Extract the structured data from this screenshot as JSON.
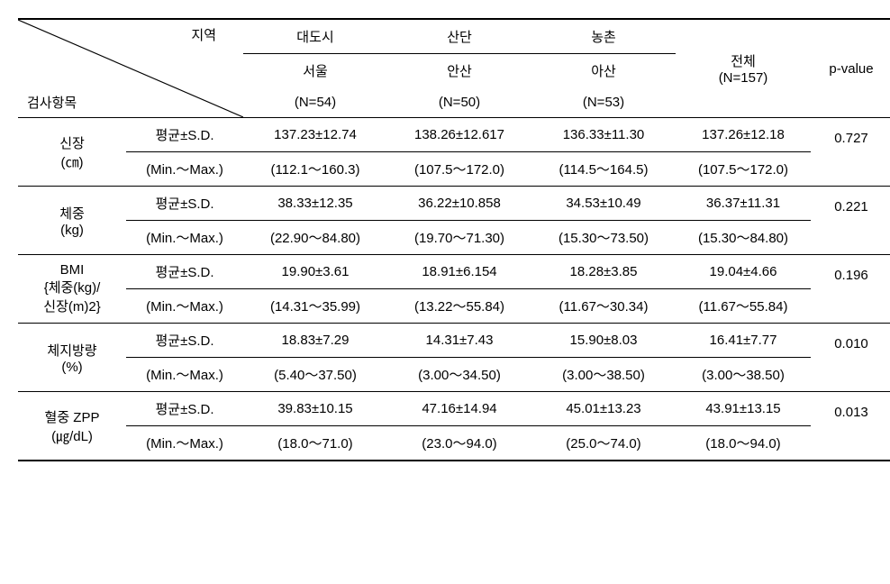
{
  "header": {
    "diag_top": "지역",
    "diag_bot": "검사항목",
    "col_groups": [
      {
        "top": "대도시",
        "sub": "서울",
        "n": "(N=54)"
      },
      {
        "top": "산단",
        "sub": "안산",
        "n": "(N=50)"
      },
      {
        "top": "농촌",
        "sub": "아산",
        "n": "(N=53)"
      }
    ],
    "total_label": "전체",
    "total_n": "(N=157)",
    "pvalue_label": "p-value",
    "stat_mean": "평균±S.D.",
    "stat_range": "(Min.～Max.)"
  },
  "rows": [
    {
      "label_line1": "신장",
      "label_line2": "(㎝)",
      "mean": [
        "137.23±12.74",
        "138.26±12.617",
        "136.33±11.30",
        "137.26±12.18"
      ],
      "range": [
        "(112.1～160.3)",
        "(107.5～172.0)",
        "(114.5～164.5)",
        "(107.5～172.0)"
      ],
      "p": "0.727"
    },
    {
      "label_line1": "체중",
      "label_line2": "(kg)",
      "mean": [
        "38.33±12.35",
        "36.22±10.858",
        "34.53±10.49",
        "36.37±11.31"
      ],
      "range": [
        "(22.90～84.80)",
        "(19.70～71.30)",
        "(15.30～73.50)",
        "(15.30～84.80)"
      ],
      "p": "0.221"
    },
    {
      "label_line1": "BMI",
      "label_line2": "{체중(kg)/",
      "label_line3": "신장(m)2}",
      "mean": [
        "19.90±3.61",
        "18.91±6.154",
        "18.28±3.85",
        "19.04±4.66"
      ],
      "range": [
        "(14.31～35.99)",
        "(13.22～55.84)",
        "(11.67～30.34)",
        "(11.67～55.84)"
      ],
      "p": "0.196"
    },
    {
      "label_line1": "체지방량",
      "label_line2": "(%)",
      "mean": [
        "18.83±7.29",
        "14.31±7.43",
        "15.90±8.03",
        "16.41±7.77"
      ],
      "range": [
        "(5.40～37.50)",
        "(3.00～34.50)",
        "(3.00～38.50)",
        "(3.00～38.50)"
      ],
      "p": "0.010"
    },
    {
      "label_line1": "혈중 ZPP",
      "label_line2": "(㎍/dL)",
      "mean": [
        "39.83±10.15",
        "47.16±14.94",
        "45.01±13.23",
        "43.91±13.15"
      ],
      "range": [
        "(18.0～71.0)",
        "(23.0～94.0)",
        "(25.0～74.0)",
        "(18.0～94.0)"
      ],
      "p": "0.013"
    }
  ]
}
